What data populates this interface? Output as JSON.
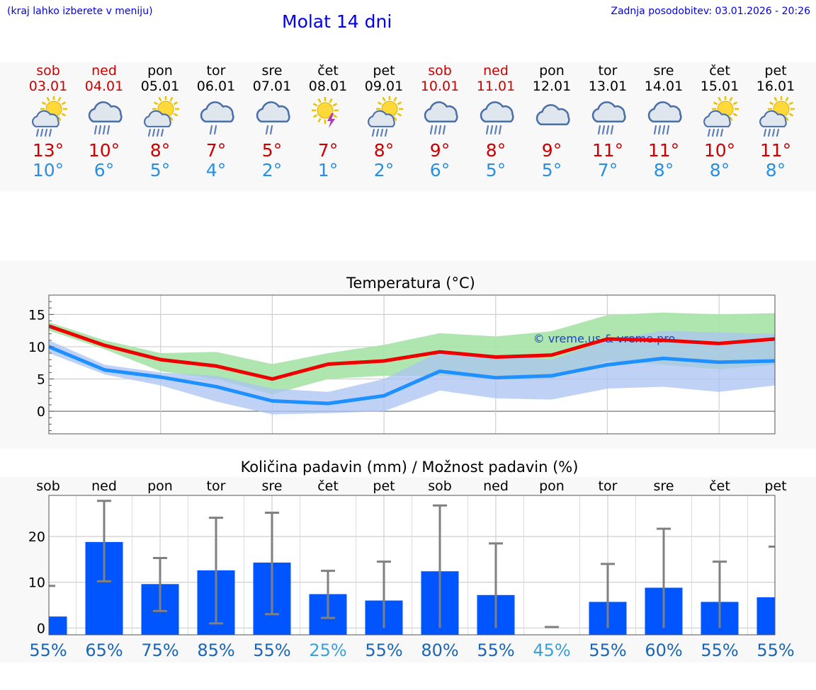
{
  "header": {
    "menu_hint": "(kraj lahko izberete v meniju)",
    "title": "Molat 14 dni",
    "last_update": "Zadnja posodobitev: 03.01.2026 - 20:26"
  },
  "days": [
    {
      "name": "sob",
      "date": "03.01",
      "weekend": true,
      "icon": "sun-cloud-rain-icon",
      "tmax": "13°",
      "tmin": "10°"
    },
    {
      "name": "ned",
      "date": "04.01",
      "weekend": true,
      "icon": "cloud-rain-icon",
      "tmax": "10°",
      "tmin": "6°"
    },
    {
      "name": "pon",
      "date": "05.01",
      "weekend": false,
      "icon": "sun-cloud-rain-icon",
      "tmax": "8°",
      "tmin": "5°"
    },
    {
      "name": "tor",
      "date": "06.01",
      "weekend": false,
      "icon": "cloud-light-rain-icon",
      "tmax": "7°",
      "tmin": "4°"
    },
    {
      "name": "sre",
      "date": "07.01",
      "weekend": false,
      "icon": "cloud-light-rain-icon",
      "tmax": "5°",
      "tmin": "2°"
    },
    {
      "name": "čet",
      "date": "08.01",
      "weekend": false,
      "icon": "sun-thunder-icon",
      "tmax": "7°",
      "tmin": "1°"
    },
    {
      "name": "pet",
      "date": "09.01",
      "weekend": false,
      "icon": "sun-cloud-rain-icon",
      "tmax": "8°",
      "tmin": "2°"
    },
    {
      "name": "sob",
      "date": "10.01",
      "weekend": true,
      "icon": "cloud-rain-icon",
      "tmax": "9°",
      "tmin": "6°"
    },
    {
      "name": "ned",
      "date": "11.01",
      "weekend": true,
      "icon": "cloud-rain-icon",
      "tmax": "8°",
      "tmin": "5°"
    },
    {
      "name": "pon",
      "date": "12.01",
      "weekend": false,
      "icon": "cloud-icon",
      "tmax": "9°",
      "tmin": "5°"
    },
    {
      "name": "tor",
      "date": "13.01",
      "weekend": false,
      "icon": "cloud-rain-icon",
      "tmax": "11°",
      "tmin": "7°"
    },
    {
      "name": "sre",
      "date": "14.01",
      "weekend": false,
      "icon": "cloud-rain-icon",
      "tmax": "11°",
      "tmin": "8°"
    },
    {
      "name": "čet",
      "date": "15.01",
      "weekend": false,
      "icon": "sun-cloud-rain-icon",
      "tmax": "10°",
      "tmin": "8°"
    },
    {
      "name": "pet",
      "date": "16.01",
      "weekend": false,
      "icon": "sun-cloud-rain-icon",
      "tmax": "11°",
      "tmin": "8°"
    }
  ],
  "colors": {
    "max": "#ee0000",
    "min": "#1e90ff",
    "max_band": "#a6e3a6",
    "min_band": "#a9c3f2",
    "bar": "#0055ff",
    "whisker": "#808080",
    "pct_dark": "#1a66b3",
    "pct_light": "#3aa0d8"
  },
  "chart_data": [
    {
      "type": "line",
      "title": "Temperatura (°C)",
      "watermark": "© vreme.us & vreme.pro",
      "x_index": [
        0,
        1,
        2,
        3,
        4,
        5,
        6,
        7,
        8,
        9,
        10,
        11,
        12,
        13
      ],
      "ylim": [
        -3.5,
        18
      ],
      "yticks": [
        0,
        5,
        10,
        15
      ],
      "series": [
        {
          "name": "max",
          "values": [
            13.2,
            10.2,
            8.0,
            7.0,
            5.0,
            7.3,
            7.8,
            9.2,
            8.4,
            8.7,
            11.2,
            11.0,
            10.5,
            11.2
          ]
        },
        {
          "name": "min",
          "values": [
            10.0,
            6.4,
            5.3,
            3.8,
            1.6,
            1.2,
            2.4,
            6.2,
            5.2,
            5.5,
            7.2,
            8.2,
            7.6,
            7.8
          ]
        }
      ],
      "bands": [
        {
          "name": "max_range",
          "upper": [
            13.8,
            11.0,
            9.0,
            9.2,
            7.3,
            9.0,
            10.3,
            12.1,
            11.6,
            12.4,
            14.9,
            15.3,
            15.0,
            15.2
          ],
          "lower": [
            12.5,
            9.6,
            6.2,
            5.0,
            2.6,
            5.0,
            5.5,
            5.5,
            5.0,
            5.0,
            7.8,
            7.2,
            6.5,
            7.2
          ]
        },
        {
          "name": "min_range",
          "upper": [
            11.0,
            7.2,
            6.0,
            5.5,
            3.5,
            3.0,
            5.0,
            9.2,
            8.7,
            8.0,
            11.0,
            12.5,
            12.2,
            12.0
          ],
          "lower": [
            9.0,
            5.7,
            4.0,
            1.5,
            -0.5,
            -0.3,
            0.0,
            3.2,
            2.0,
            1.8,
            3.5,
            3.8,
            3.0,
            4.0
          ]
        }
      ]
    },
    {
      "type": "bar",
      "title": "Količina padavin (mm) / Možnost padavin (%)",
      "categories": [
        "sob",
        "ned",
        "pon",
        "tor",
        "sre",
        "čet",
        "pet",
        "sob",
        "ned",
        "pon",
        "tor",
        "sre",
        "čet",
        "pet"
      ],
      "values": [
        2.5,
        18.8,
        9.6,
        12.6,
        14.3,
        7.4,
        6.0,
        12.4,
        7.2,
        0,
        5.7,
        8.8,
        5.7,
        6.7
      ],
      "error_high": [
        9.2,
        27.8,
        15.3,
        24.1,
        25.2,
        12.5,
        14.5,
        26.8,
        18.5,
        0.2,
        14.0,
        21.7,
        14.5,
        17.8
      ],
      "error_low": [
        0,
        10.2,
        3.7,
        1.0,
        3.0,
        2.2,
        0,
        0,
        0,
        0,
        0,
        0,
        0,
        0
      ],
      "ylim": [
        -1.5,
        29
      ],
      "yticks": [
        0,
        10,
        20
      ],
      "probability": [
        "55%",
        "65%",
        "75%",
        "85%",
        "55%",
        "25%",
        "55%",
        "80%",
        "55%",
        "45%",
        "55%",
        "60%",
        "55%",
        "55%"
      ],
      "probability_tone": [
        "dark",
        "dark",
        "dark",
        "dark",
        "dark",
        "light",
        "dark",
        "dark",
        "dark",
        "light",
        "dark",
        "dark",
        "dark",
        "dark"
      ]
    }
  ]
}
